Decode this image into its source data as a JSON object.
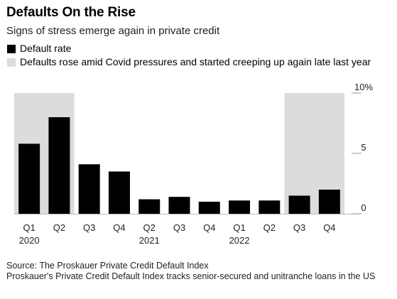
{
  "title": "Defaults On the Rise",
  "subtitle": "Signs of stress emerge again in private credit",
  "legend": [
    {
      "label": "Default rate",
      "color": "#000000"
    },
    {
      "label": "Defaults rose amid Covid pressures and started creeping up again late last year",
      "color": "#dcdcdc"
    }
  ],
  "source": "Source: The Proskauer Private Credit Default Index",
  "note": "Proskauer's Private Credit Default Index tracks senior-secured and unitranche loans in the US",
  "chart_data": {
    "type": "bar",
    "categories": [
      "Q1 2020",
      "Q2 2020",
      "Q3 2020",
      "Q4 2020",
      "Q2 2021",
      "Q3 2021",
      "Q4 2021",
      "Q1 2022",
      "Q2 2022",
      "Q3 2022",
      "Q4 2022"
    ],
    "tick_labels": [
      "Q1",
      "Q2",
      "Q3",
      "Q4",
      "Q2",
      "Q3",
      "Q4",
      "Q1",
      "Q2",
      "Q3",
      "Q4"
    ],
    "year_labels": [
      {
        "text": "2020",
        "index": 0
      },
      {
        "text": "2021",
        "index": 4
      },
      {
        "text": "2022",
        "index": 7
      }
    ],
    "series": [
      {
        "name": "Default rate",
        "values": [
          5.8,
          8.0,
          4.1,
          3.5,
          1.2,
          1.4,
          1.0,
          1.1,
          1.1,
          1.5,
          2.0
        ],
        "color": "#000000"
      }
    ],
    "shaded_ranges": [
      {
        "from": 0,
        "to": 1,
        "color": "#dcdcdc"
      },
      {
        "from": 9,
        "to": 10,
        "color": "#dcdcdc"
      }
    ],
    "ylim": [
      0,
      10
    ],
    "yticks": [
      {
        "value": 0,
        "label": "0"
      },
      {
        "value": 5,
        "label": "5"
      },
      {
        "value": 10,
        "label": "10%"
      }
    ],
    "axis_side": "right"
  }
}
